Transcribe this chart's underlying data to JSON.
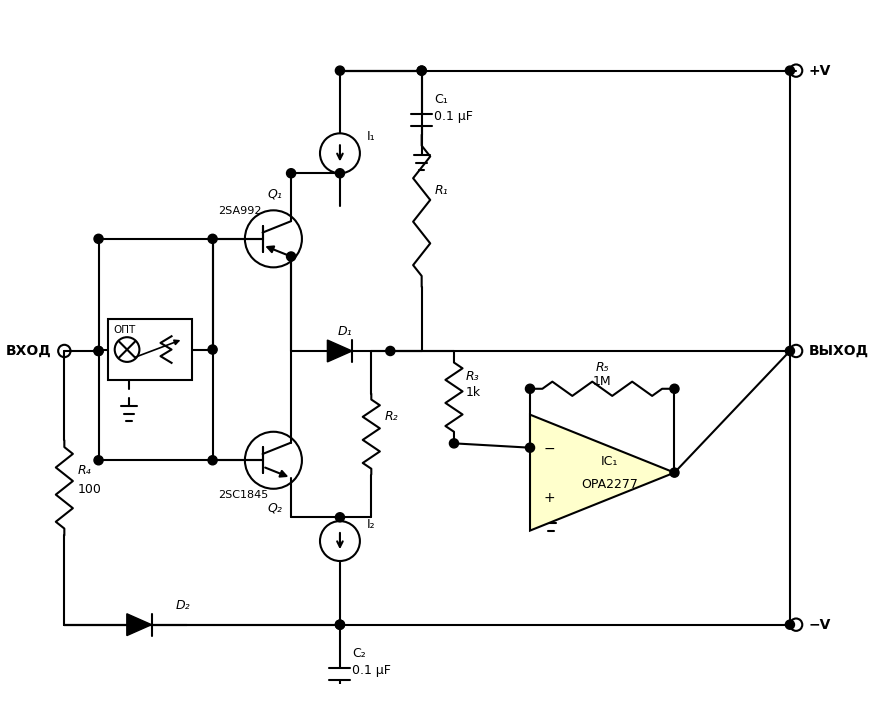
{
  "bg_color": "#ffffff",
  "line_color": "#000000",
  "opamp_fill": "#ffffcc",
  "opamp_label1": "IC₁",
  "opamp_label2": "OPA2277",
  "q1_label": "Q₁",
  "q1_type": "2SA992",
  "q2_label": "Q₂",
  "q2_type": "2SC1845",
  "i1_label": "I₁",
  "i2_label": "I₂",
  "r1_label": "R₁",
  "r2_label": "R₂",
  "r3_label": "R₃",
  "r3_val": "1k",
  "r4_label": "R₄",
  "r4_val": "100",
  "r5_label": "R₅",
  "r5_val": "1M",
  "c1_label": "C₁",
  "c1_val": "0.1 μF",
  "c2_label": "C₂",
  "c2_val": "0.1 μF",
  "d1_label": "D₁",
  "d2_label": "D₂",
  "vplus_label": "+V",
  "vminus_label": "−V",
  "vhod_label": "ВХОД",
  "vykhod_label": "ВЫХОД",
  "opt_label": "ОПТ",
  "figsize": [
    8.75,
    7.01
  ],
  "dpi": 100
}
